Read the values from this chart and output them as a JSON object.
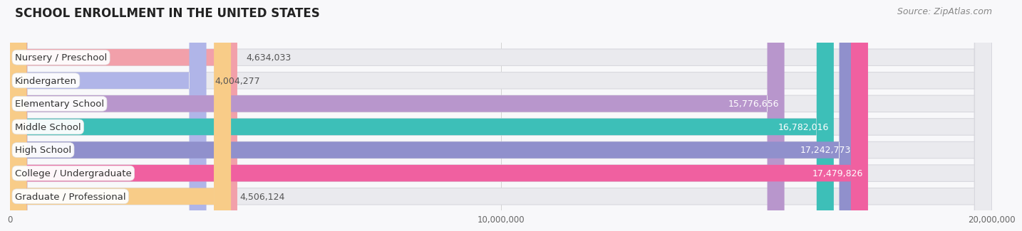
{
  "title": "SCHOOL ENROLLMENT IN THE UNITED STATES",
  "source": "Source: ZipAtlas.com",
  "categories": [
    "Nursery / Preschool",
    "Kindergarten",
    "Elementary School",
    "Middle School",
    "High School",
    "College / Undergraduate",
    "Graduate / Professional"
  ],
  "values": [
    4634033,
    4004277,
    15776656,
    16782016,
    17242773,
    17479826,
    4506124
  ],
  "bar_colors": [
    "#f2a0aa",
    "#b0b5e8",
    "#b896cc",
    "#3dbfb8",
    "#9090cc",
    "#f060a0",
    "#f8cc88"
  ],
  "bar_bg_color": "#eaeaee",
  "background_color": "#f8f8fa",
  "xlim": [
    0,
    20000000
  ],
  "xtick_labels": [
    "0",
    "10,000,000",
    "20,000,000"
  ],
  "title_fontsize": 12,
  "label_fontsize": 9.5,
  "value_fontsize": 9,
  "source_fontsize": 9
}
